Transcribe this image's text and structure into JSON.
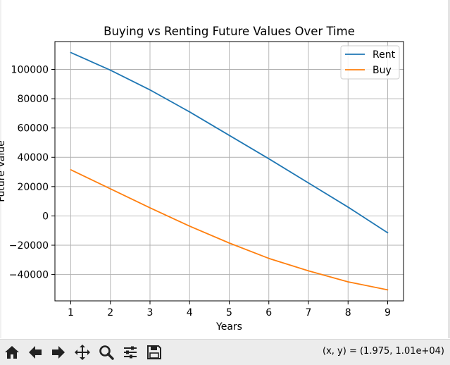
{
  "toolbar": {
    "coordinate_readout": "(x, y) = (1.975, 1.01e+04)",
    "buttons": [
      {
        "name": "home-icon",
        "label": "Home"
      },
      {
        "name": "back-arrow-icon",
        "label": "Back"
      },
      {
        "name": "forward-arrow-icon",
        "label": "Forward"
      },
      {
        "name": "pan-icon",
        "label": "Pan"
      },
      {
        "name": "zoom-icon",
        "label": "Zoom"
      },
      {
        "name": "configure-subplots-icon",
        "label": "Configure subplots"
      },
      {
        "name": "save-icon",
        "label": "Save"
      }
    ]
  },
  "chart_data": {
    "type": "line",
    "title": "Buying vs Renting Future Values Over Time",
    "xlabel": "Years",
    "ylabel": "Future Value",
    "x": [
      1,
      2,
      3,
      4,
      5,
      6,
      7,
      8,
      9
    ],
    "xticks": [
      "1",
      "2",
      "3",
      "4",
      "5",
      "6",
      "7",
      "8",
      "9"
    ],
    "yticks": [
      -40000,
      -20000,
      0,
      20000,
      40000,
      60000,
      80000,
      100000
    ],
    "ytick_labels": [
      "−40000",
      "−20000",
      "0",
      "20000",
      "40000",
      "60000",
      "80000",
      "100000"
    ],
    "xlim": [
      0.6,
      9.4
    ],
    "ylim": [
      -58000,
      119000
    ],
    "grid": true,
    "legend_position": "top-right",
    "series": [
      {
        "name": "Rent",
        "color": "#1f77b4",
        "values": [
          111500,
          99500,
          86000,
          71000,
          55000,
          39000,
          22500,
          6000,
          -11500
        ]
      },
      {
        "name": "Buy",
        "color": "#ff7f0e",
        "values": [
          31500,
          18500,
          5500,
          -7000,
          -18500,
          -29000,
          -37500,
          -45000,
          -50500
        ]
      }
    ]
  }
}
